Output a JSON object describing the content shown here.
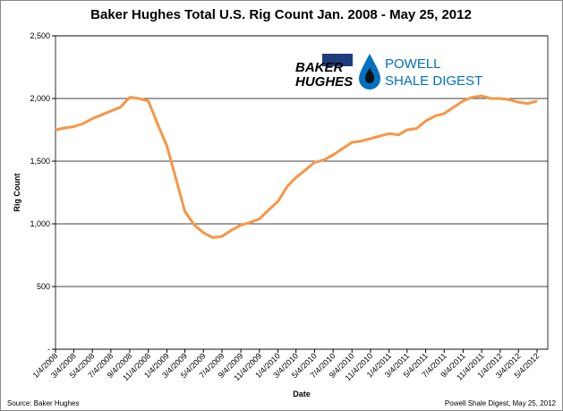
{
  "chart_data": {
    "type": "line",
    "title": "Baker Hughes Total U.S. Rig Count Jan. 2008 - May 25, 2012",
    "x_label": "Date",
    "y_label": "Rig Count",
    "source": "Source: Baker Hughes",
    "credit": "Powell Shale Digest, May 25, 2012",
    "annotations": [
      "BAKER",
      "HUGHES",
      "POWELL",
      "SHALE DIGEST"
    ],
    "x": [
      "1/4/2008",
      "2/4/2008",
      "3/4/2008",
      "4/4/2008",
      "5/4/2008",
      "6/4/2008",
      "7/4/2008",
      "8/4/2008",
      "9/4/2008",
      "10/4/2008",
      "11/4/2008",
      "12/4/2008",
      "1/4/2009",
      "2/4/2009",
      "3/4/2009",
      "4/4/2009",
      "5/4/2009",
      "6/4/2009",
      "7/4/2009",
      "8/4/2009",
      "9/4/2009",
      "10/4/2009",
      "11/4/2009",
      "12/4/2009",
      "1/4/2010",
      "2/4/2010",
      "3/4/2010",
      "4/4/2010",
      "5/4/2010",
      "6/4/2010",
      "7/4/2010",
      "8/4/2010",
      "9/4/2010",
      "10/4/2010",
      "11/4/2010",
      "12/4/2010",
      "1/4/2011",
      "2/4/2011",
      "3/4/2011",
      "4/4/2011",
      "5/4/2011",
      "6/4/2011",
      "7/4/2011",
      "8/4/2011",
      "9/4/2011",
      "10/4/2011",
      "11/4/2011",
      "12/4/2011",
      "1/4/2012",
      "2/4/2012",
      "3/4/2012",
      "4/4/2012",
      "5/4/2012"
    ],
    "series": [
      {
        "name": "Rig Count",
        "color": "#f79646",
        "values": [
          1750,
          1765,
          1775,
          1800,
          1840,
          1870,
          1900,
          1930,
          2010,
          2000,
          1980,
          1800,
          1620,
          1350,
          1100,
          990,
          930,
          890,
          900,
          950,
          990,
          1010,
          1040,
          1110,
          1180,
          1300,
          1370,
          1430,
          1490,
          1510,
          1550,
          1600,
          1650,
          1660,
          1680,
          1700,
          1720,
          1710,
          1750,
          1760,
          1820,
          1860,
          1880,
          1930,
          1980,
          2010,
          2020,
          2000,
          2000,
          1990,
          1970,
          1960,
          1980
        ]
      }
    ],
    "xticks": [
      "1/4/2008",
      "3/4/2008",
      "5/4/2008",
      "7/4/2008",
      "9/4/2008",
      "11/4/2008",
      "1/4/2009",
      "3/4/2009",
      "5/4/2009",
      "7/4/2009",
      "9/4/2009",
      "11/4/2009",
      "1/4/2010",
      "3/4/2010",
      "5/4/2010",
      "7/4/2010",
      "9/4/2010",
      "11/4/2010",
      "1/4/2011",
      "3/4/2011",
      "5/4/2011",
      "7/4/2011",
      "9/4/2011",
      "11/4/2011",
      "1/4/2012",
      "3/4/2012",
      "5/4/2012"
    ],
    "ylim": [
      0,
      2500
    ],
    "yticks": [
      {
        "value": 0,
        "label": "-"
      },
      500,
      {
        "value": 1000,
        "label": "1,000"
      },
      {
        "value": 1500,
        "label": "1,500"
      },
      {
        "value": 2000,
        "label": "2,000"
      },
      {
        "value": 2500,
        "label": "2,500"
      }
    ],
    "grid": true
  }
}
